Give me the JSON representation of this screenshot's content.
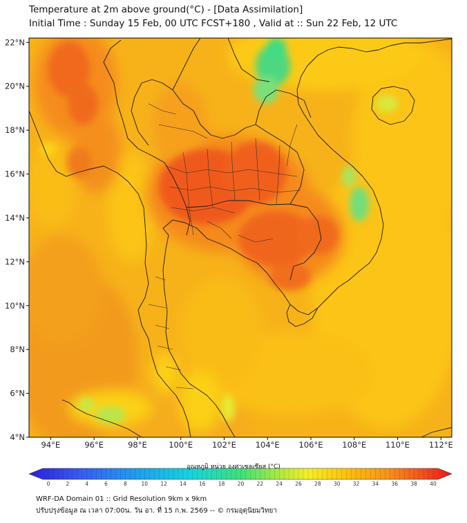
{
  "header": {
    "title_line1": "Temperature at 2m above ground(°C) - [Data Assimilation]",
    "title_line2": "Initial Time : Sunday 15 Feb, 00 UTC FCST+180 , Valid at :: Sun 22 Feb, 12 UTC"
  },
  "map": {
    "lon_ticks": [
      "94°E",
      "96°E",
      "98°E",
      "100°E",
      "102°E",
      "104°E",
      "106°E",
      "108°E",
      "110°E",
      "112°E"
    ],
    "lat_ticks": [
      "22°N",
      "20°N",
      "18°N",
      "16°N",
      "14°N",
      "12°N",
      "10°N",
      "8°N",
      "6°N",
      "4°N"
    ],
    "lon_range": [
      93,
      112.5
    ],
    "lat_range": [
      4,
      22.2
    ]
  },
  "colorbar": {
    "title": "อุณหภูมิ หน่วย องศาเซลเซียส (°C)",
    "ticks": [
      "0",
      "2",
      "4",
      "6",
      "8",
      "10",
      "12",
      "14",
      "16",
      "18",
      "20",
      "22",
      "24",
      "26",
      "28",
      "30",
      "32",
      "34",
      "36",
      "38",
      "40"
    ],
    "min": 0,
    "max": 40
  },
  "footer": {
    "line1": "WRF-DA Domain 01 :: Grid Resolution 9km x 9km",
    "line2": "ปรับปรุงข้อมูล ณ เวลา 07:00น. วัน อา. ที่ 15 ก.พ. 2569 -- © กรมอุตุนิยมวิทยา"
  }
}
